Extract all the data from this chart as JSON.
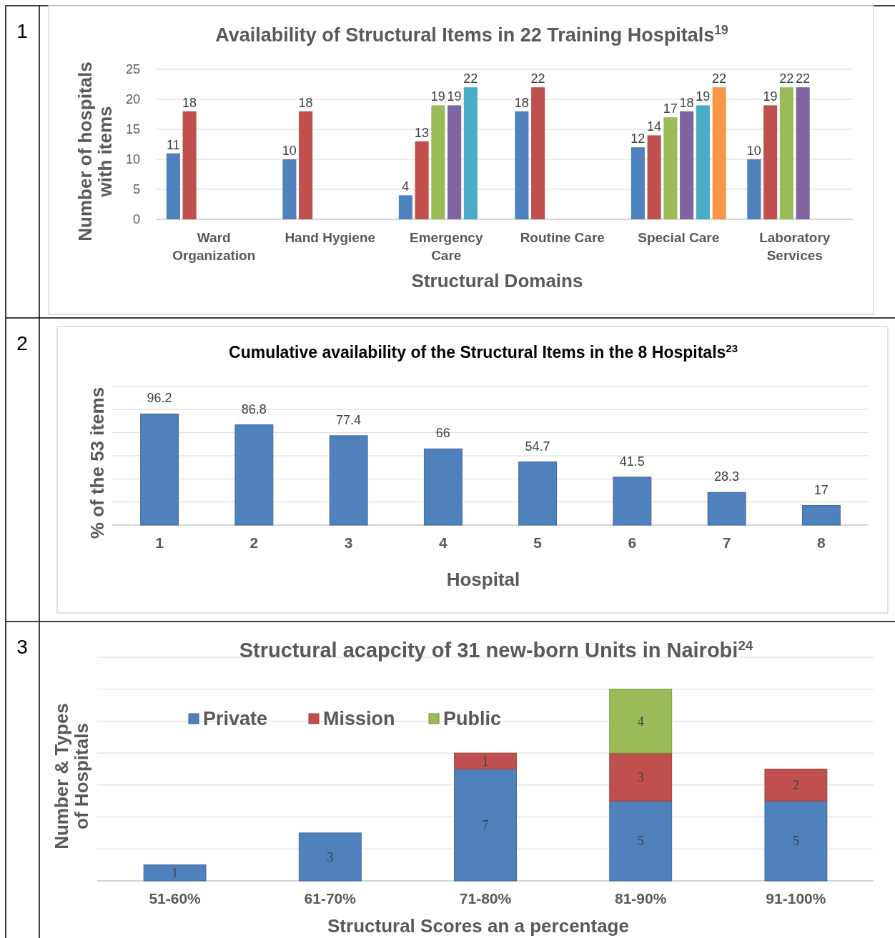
{
  "chart_data": [
    {
      "type": "bar",
      "title": "Availability of Structural Items in 22 Training Hospitals$^{19}$",
      "xlabel": "Structural Domains",
      "ylabel": "Number of hospitals with items",
      "categories": [
        "Ward Organization",
        "Hand Hygiene",
        "Emergency Care",
        "Routine Care",
        "Special Care",
        "Laboratory Services"
      ],
      "series": [
        {
          "color": "#4f81bd",
          "values": [
            11,
            10,
            4,
            18,
            12,
            10
          ]
        },
        {
          "color": "#c0504d",
          "values": [
            18,
            18,
            13,
            22,
            14,
            19
          ]
        },
        {
          "color": "#9bbb59",
          "values": [
            null,
            null,
            19,
            null,
            17,
            22
          ]
        },
        {
          "color": "#8064a2",
          "values": [
            null,
            null,
            19,
            null,
            18,
            22
          ]
        },
        {
          "color": "#4bacc6",
          "values": [
            null,
            null,
            22,
            null,
            19,
            null
          ]
        },
        {
          "color": "#f79646",
          "values": [
            null,
            null,
            null,
            null,
            22,
            null
          ]
        }
      ],
      "ylim": [
        0,
        25
      ],
      "yticks": [
        0,
        5,
        10,
        15,
        20,
        25
      ],
      "grid": "y",
      "data_labels": true,
      "legend": false,
      "annotations": [
        "1"
      ]
    },
    {
      "type": "bar",
      "title": "Cumulative availability of the Structural Items in the 8  Hospitals$^{23}$",
      "xlabel": "Hospital",
      "ylabel": "% of the 53 items",
      "categories": [
        "1",
        "2",
        "3",
        "4",
        "5",
        "6",
        "7",
        "8"
      ],
      "series": [
        {
          "color": "#4f81bd",
          "values": [
            96.2,
            86.8,
            77.4,
            66,
            54.7,
            41.5,
            28.3,
            17
          ]
        }
      ],
      "ylim": [
        0,
        120
      ],
      "yticks": [
        {
          "value": 0,
          "label": null
        },
        {
          "value": 20,
          "label": null
        },
        {
          "value": 40,
          "label": null
        },
        {
          "value": 60,
          "label": null
        },
        {
          "value": 80,
          "label": null
        },
        {
          "value": 100,
          "label": null
        },
        {
          "value": 120,
          "label": null
        }
      ],
      "tick_labels": "x",
      "grid": "y",
      "data_labels": true,
      "legend": false,
      "annotations": [
        "2"
      ]
    },
    {
      "type": "bar",
      "stacked": true,
      "title": "Structural acapcity of 31 new-born Units in Nairobi$^{24}$",
      "xlabel": "Structural Scores an a percentage",
      "ylabel": "Number & Types of Hospitals",
      "categories": [
        "51-60%",
        "61-70%",
        "71-80%",
        "81-90%",
        "91-100%"
      ],
      "series": [
        {
          "name": "Private",
          "color": "#4f81bd",
          "values": [
            1,
            3,
            7,
            5,
            5
          ]
        },
        {
          "name": "Mission",
          "color": "#c0504d",
          "values": [
            null,
            null,
            1,
            3,
            2
          ]
        },
        {
          "name": "Public",
          "color": "#9bbb59",
          "values": [
            null,
            null,
            null,
            4,
            null
          ]
        }
      ],
      "ylim": [
        0,
        14
      ],
      "yticks": [
        {
          "value": 0,
          "label": null
        },
        {
          "value": 2,
          "label": null
        },
        {
          "value": 4,
          "label": null
        },
        {
          "value": 6,
          "label": null
        },
        {
          "value": 8,
          "label": null
        },
        {
          "value": 10,
          "label": null
        },
        {
          "value": 12,
          "label": null
        },
        {
          "value": 14,
          "label": null
        }
      ],
      "tick_labels": "x",
      "grid": "y",
      "data_labels": true,
      "legend": "top left",
      "annotations": [
        "3"
      ]
    }
  ]
}
